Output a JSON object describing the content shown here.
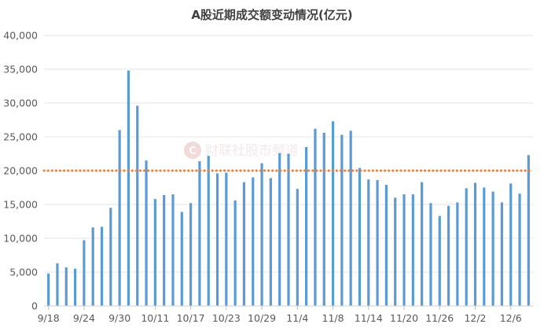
{
  "chart_data": {
    "type": "bar",
    "title": "A股近期成交额变动情况(亿元)",
    "xlabel": "",
    "ylabel": "",
    "ylim": [
      0,
      40000
    ],
    "y_ticks": [
      "0",
      "5,000",
      "10,000",
      "15,000",
      "20,000",
      "25,000",
      "30,000",
      "35,000",
      "40,000"
    ],
    "x_tick_labels": [
      "9/18",
      "9/24",
      "9/30",
      "10/11",
      "10/17",
      "10/23",
      "10/29",
      "11/4",
      "11/8",
      "11/14",
      "11/20",
      "11/26",
      "12/2",
      "12/6"
    ],
    "x_tick_indices": [
      0,
      4,
      8,
      12,
      16,
      20,
      24,
      28,
      32,
      36,
      40,
      44,
      48,
      52
    ],
    "categories": [
      "9/18",
      "9/19",
      "9/20",
      "9/23",
      "9/24",
      "9/25",
      "9/26",
      "9/27",
      "9/30",
      "10/8",
      "10/9",
      "10/10",
      "10/11",
      "10/14",
      "10/15",
      "10/16",
      "10/17",
      "10/18",
      "10/21",
      "10/22",
      "10/23",
      "10/24",
      "10/25",
      "10/28",
      "10/29",
      "10/30",
      "10/31",
      "11/1",
      "11/4",
      "11/5",
      "11/6",
      "11/7",
      "11/8",
      "11/11",
      "11/12",
      "11/13",
      "11/14",
      "11/15",
      "11/18",
      "11/19",
      "11/20",
      "11/21",
      "11/22",
      "11/25",
      "11/26",
      "11/27",
      "11/28",
      "11/29",
      "12/2",
      "12/3",
      "12/4",
      "12/5",
      "12/6",
      "12/9",
      "12/10"
    ],
    "series": [
      {
        "values": [
          4800,
          6300,
          5700,
          5500,
          9700,
          11600,
          11700,
          14500,
          26000,
          34800,
          29600,
          21500,
          15800,
          16400,
          16500,
          13900,
          15200,
          21400,
          22200,
          19600,
          19700,
          15600,
          18300,
          19000,
          21100,
          18900,
          22600,
          22500,
          17300,
          23500,
          26200,
          25600,
          27300,
          25300,
          25900,
          20400,
          18700,
          18600,
          17900,
          16000,
          16500,
          16500,
          18300,
          15200,
          13300,
          14800,
          15300,
          17400,
          18200,
          17500,
          16900,
          15300,
          18100,
          16600,
          22300
        ],
        "color": "#5b9bd5"
      }
    ],
    "reference_line": {
      "value": 20000,
      "color": "#ed7d31",
      "style": "dotted"
    },
    "grid": true,
    "legend": "none"
  },
  "watermark": {
    "text": "财联社股市频道",
    "icon": "cls-logo-icon",
    "color": "#e9b8b8"
  }
}
